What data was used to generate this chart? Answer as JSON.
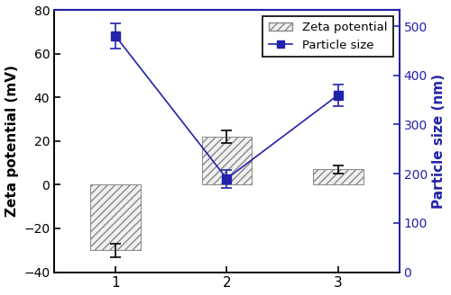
{
  "categories": [
    1,
    2,
    3
  ],
  "zeta_values": [
    -30,
    22,
    7
  ],
  "zeta_errors": [
    3,
    3,
    2
  ],
  "particle_values": [
    480,
    190,
    360
  ],
  "particle_errors": [
    25,
    18,
    22
  ],
  "bar_hatch": "////",
  "bar_facecolor": "#f0f0f0",
  "bar_edgecolor": "#888888",
  "line_color": "#2222aa",
  "marker_color": "#2222aa",
  "left_ylabel": "Zeta potential (mV)",
  "right_ylabel": "Particle size (nm)",
  "ylim_left": [
    -40,
    80
  ],
  "ylim_right": [
    0,
    533
  ],
  "yticks_left": [
    -40,
    -20,
    0,
    20,
    40,
    60,
    80
  ],
  "yticks_right": [
    0,
    100,
    200,
    300,
    400,
    500
  ],
  "legend_labels": [
    "Zeta potential",
    "Particle size"
  ],
  "bar_width": 0.45,
  "spine_color_right": "#2222aa",
  "tick_color_right": "#2222aa",
  "label_color_right": "#2222aa",
  "background_color": "#ffffff"
}
